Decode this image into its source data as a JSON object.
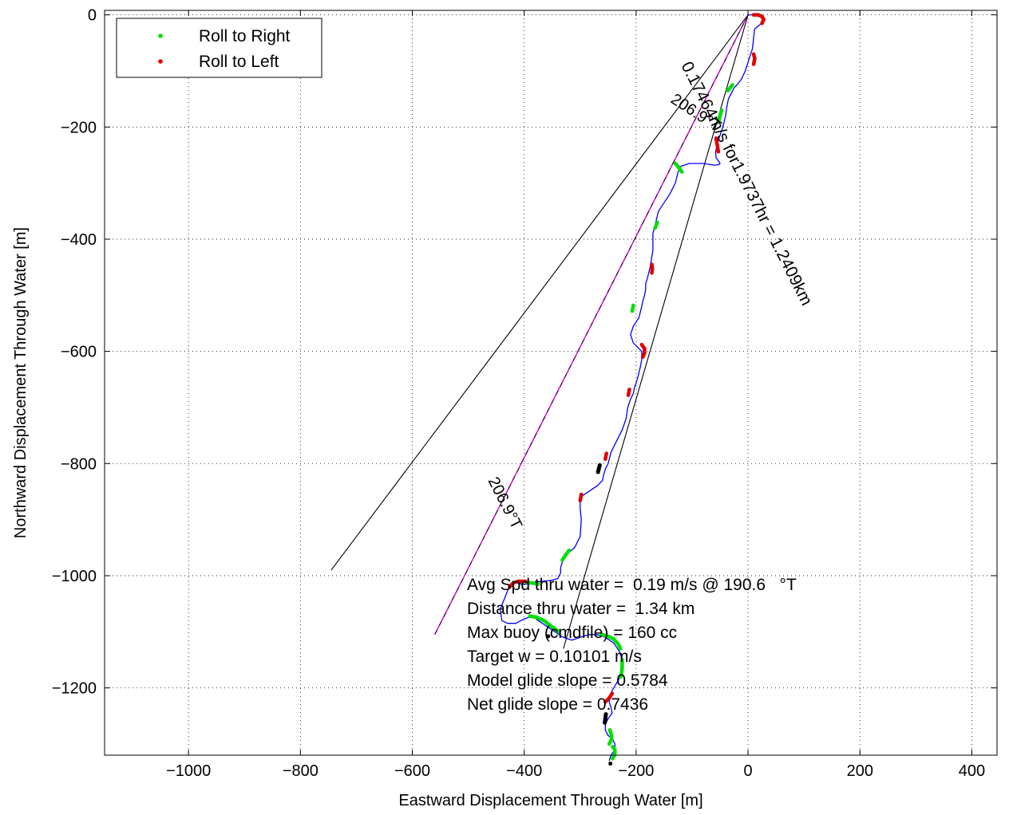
{
  "chart_data": {
    "type": "line",
    "title": "",
    "xlabel": "Eastward Displacement Through Water [m]",
    "ylabel": "Northward Displacement Through Water [m]",
    "xlim": [
      -1150,
      445
    ],
    "ylim": [
      -1320,
      8
    ],
    "grid": true,
    "x_ticks": [
      -1000,
      -800,
      -600,
      -400,
      -200,
      0,
      200,
      400
    ],
    "y_ticks": [
      0,
      -200,
      -400,
      -600,
      -800,
      -1000,
      -1200
    ],
    "x_tick_labels": [
      "−1000",
      "−800",
      "−600",
      "−400",
      "−200",
      "0",
      "200",
      "400"
    ],
    "y_tick_labels": [
      "0",
      "−200",
      "−400",
      "−600",
      "−800",
      "−1000",
      "−1200"
    ],
    "legend": {
      "placement": "top-left",
      "entries": [
        {
          "label": "Roll to Right",
          "color": "#00e000"
        },
        {
          "label": "Roll to Left",
          "color": "#e00000"
        }
      ]
    },
    "colors": {
      "track": "#0000ff",
      "roll_right": "#00e000",
      "roll_left": "#e00000",
      "net_line": "#cc00cc",
      "fan_lines": "#000000"
    },
    "track": {
      "x": [
        0,
        10,
        25,
        28,
        22,
        18,
        12,
        10,
        8,
        3,
        -5,
        -12,
        -20,
        -25,
        -30,
        -35,
        -38,
        -40,
        -45,
        -50,
        -55,
        -58,
        -57,
        -53,
        -50,
        -52,
        -60,
        -80,
        -105,
        -120,
        -125,
        -130,
        -140,
        -150,
        -160,
        -165,
        -170,
        -170,
        -175,
        -180,
        -183,
        -183,
        -185,
        -188,
        -190,
        -195,
        -205,
        -210,
        -205,
        -200,
        -195,
        -190,
        -190,
        -193,
        -198,
        -203,
        -205,
        -210,
        -215,
        -218,
        -225,
        -235,
        -245,
        -250,
        -255,
        -258,
        -260,
        -270,
        -285,
        -300,
        -300,
        -298,
        -300,
        -310,
        -322,
        -330,
        -335,
        -335,
        -340,
        -350,
        -370,
        -390,
        -405,
        -415,
        -420,
        -427,
        -435,
        -443,
        -440,
        -430,
        -415,
        -400,
        -385,
        -375,
        -360,
        -345,
        -330,
        -315,
        -300,
        -285,
        -270,
        -255,
        -240,
        -230,
        -225,
        -225,
        -228,
        -237,
        -243,
        -247,
        -248,
        -245,
        -243,
        -250,
        -255,
        -255,
        -250,
        -243,
        -238,
        -238,
        -245,
        -248
      ],
      "y": [
        0,
        0,
        -3,
        -10,
        -17,
        -20,
        -25,
        -40,
        -60,
        -75,
        -100,
        -115,
        -125,
        -130,
        -140,
        -150,
        -165,
        -180,
        -200,
        -215,
        -230,
        -245,
        -255,
        -260,
        -265,
        -267,
        -268,
        -265,
        -265,
        -270,
        -280,
        -300,
        -320,
        -335,
        -350,
        -370,
        -390,
        -420,
        -450,
        -470,
        -480,
        -490,
        -500,
        -510,
        -520,
        -540,
        -555,
        -570,
        -585,
        -590,
        -595,
        -600,
        -615,
        -630,
        -650,
        -665,
        -675,
        -685,
        -700,
        -720,
        -740,
        -760,
        -780,
        -800,
        -810,
        -820,
        -830,
        -840,
        -850,
        -860,
        -880,
        -900,
        -930,
        -950,
        -960,
        -970,
        -985,
        -995,
        -1005,
        -1008,
        -1010,
        -1015,
        -1015,
        -1010,
        -1013,
        -1020,
        -1040,
        -1060,
        -1080,
        -1085,
        -1085,
        -1077,
        -1072,
        -1080,
        -1090,
        -1100,
        -1110,
        -1115,
        -1110,
        -1105,
        -1105,
        -1110,
        -1120,
        -1135,
        -1150,
        -1165,
        -1180,
        -1195,
        -1205,
        -1215,
        -1225,
        -1235,
        -1245,
        -1255,
        -1265,
        -1275,
        -1285,
        -1290,
        -1300,
        -1310,
        -1320,
        -1330
      ]
    },
    "roll_right_segments": [
      {
        "x": [
          -28,
          -32,
          -36
        ],
        "y": [
          -125,
          -130,
          -135
        ]
      },
      {
        "x": [
          -47,
          -50,
          -52
        ],
        "y": [
          -170,
          -180,
          -190
        ]
      },
      {
        "x": [
          -130,
          -124,
          -118
        ],
        "y": [
          -265,
          -272,
          -280
        ]
      },
      {
        "x": [
          -162,
          -166
        ],
        "y": [
          -370,
          -380
        ]
      },
      {
        "x": [
          -205,
          -207
        ],
        "y": [
          -518,
          -528
        ]
      },
      {
        "x": [
          -320,
          -326,
          -332
        ],
        "y": [
          -955,
          -963,
          -972
        ]
      },
      {
        "x": [
          -375,
          -385,
          -395
        ],
        "y": [
          -1015,
          -1013,
          -1012
        ]
      },
      {
        "x": [
          -390,
          -378,
          -365,
          -352,
          -338
        ],
        "y": [
          -1072,
          -1074,
          -1080,
          -1090,
          -1100
        ]
      },
      {
        "x": [
          -262,
          -250,
          -240,
          -232,
          -228
        ],
        "y": [
          -1105,
          -1108,
          -1113,
          -1122,
          -1130
        ]
      },
      {
        "x": [
          -225,
          -225,
          -227
        ],
        "y": [
          -1150,
          -1165,
          -1180
        ]
      },
      {
        "x": [
          -247,
          -244,
          -244,
          -248
        ],
        "y": [
          -1275,
          -1285,
          -1292,
          -1300
        ]
      },
      {
        "x": [
          -242,
          -238,
          -238,
          -242
        ],
        "y": [
          -1305,
          -1310,
          -1318,
          -1326
        ]
      }
    ],
    "roll_left_segments": [
      {
        "x": [
          10,
          18,
          25,
          28,
          25
        ],
        "y": [
          0,
          0,
          -3,
          -8,
          -15
        ]
      },
      {
        "x": [
          10,
          12,
          10
        ],
        "y": [
          -70,
          -78,
          -88
        ]
      },
      {
        "x": [
          -57,
          -55,
          -53
        ],
        "y": [
          -220,
          -232,
          -244
        ]
      },
      {
        "x": [
          -172,
          -171,
          -172
        ],
        "y": [
          -445,
          -452,
          -460
        ]
      },
      {
        "x": [
          -190,
          -185,
          -185,
          -188
        ],
        "y": [
          -588,
          -595,
          -603,
          -610
        ]
      },
      {
        "x": [
          -212,
          -214
        ],
        "y": [
          -668,
          -678
        ]
      },
      {
        "x": [
          -253,
          -255
        ],
        "y": [
          -782,
          -792
        ]
      },
      {
        "x": [
          -298,
          -300
        ],
        "y": [
          -855,
          -866
        ]
      },
      {
        "x": [
          -398,
          -410,
          -420,
          -426
        ],
        "y": [
          -1010,
          -1010,
          -1013,
          -1020
        ]
      },
      {
        "x": [
          -243,
          -248,
          -255
        ],
        "y": [
          -1210,
          -1218,
          -1225
        ]
      }
    ],
    "black_markers": [
      {
        "x": [
          -265,
          -268
        ],
        "y": [
          -803,
          -815
        ]
      },
      {
        "x": [
          -357
        ],
        "y": [
          -1108
        ]
      },
      {
        "x": [
          -254,
          -256
        ],
        "y": [
          -1247,
          -1262
        ]
      },
      {
        "x": [
          -246
        ],
        "y": [
          -1335
        ]
      }
    ],
    "net_line": {
      "x": [
        0,
        -560
      ],
      "y": [
        0,
        -1105
      ]
    },
    "fan_lines": [
      {
        "x": [
          0,
          -745
        ],
        "y": [
          0,
          -990
        ]
      },
      {
        "x": [
          0,
          -330
        ],
        "y": [
          0,
          -1130
        ]
      }
    ],
    "annotations": [
      {
        "text": "206.9°T",
        "x": -140,
        "y": -155,
        "angle": 33,
        "font_size": 20
      },
      {
        "text": "0.17464m/s for1.9737hr = 1.2409km",
        "x": -120,
        "y": -90,
        "angle": 63.2,
        "font_size": 21
      },
      {
        "text": "206.9°T",
        "x": -465,
        "y": -830,
        "angle": 63.2,
        "font_size": 20
      }
    ],
    "info_lines": [
      "Avg Spd thru water =  0.19 m/s @ 190.6   °T",
      "Distance thru water =  1.34 km",
      "Max buoy (cmdfile) = 160 cc",
      "Target w = 0.10101 m/s",
      "Model glide slope = 0.5784",
      "Net glide slope = 0.7436"
    ]
  }
}
